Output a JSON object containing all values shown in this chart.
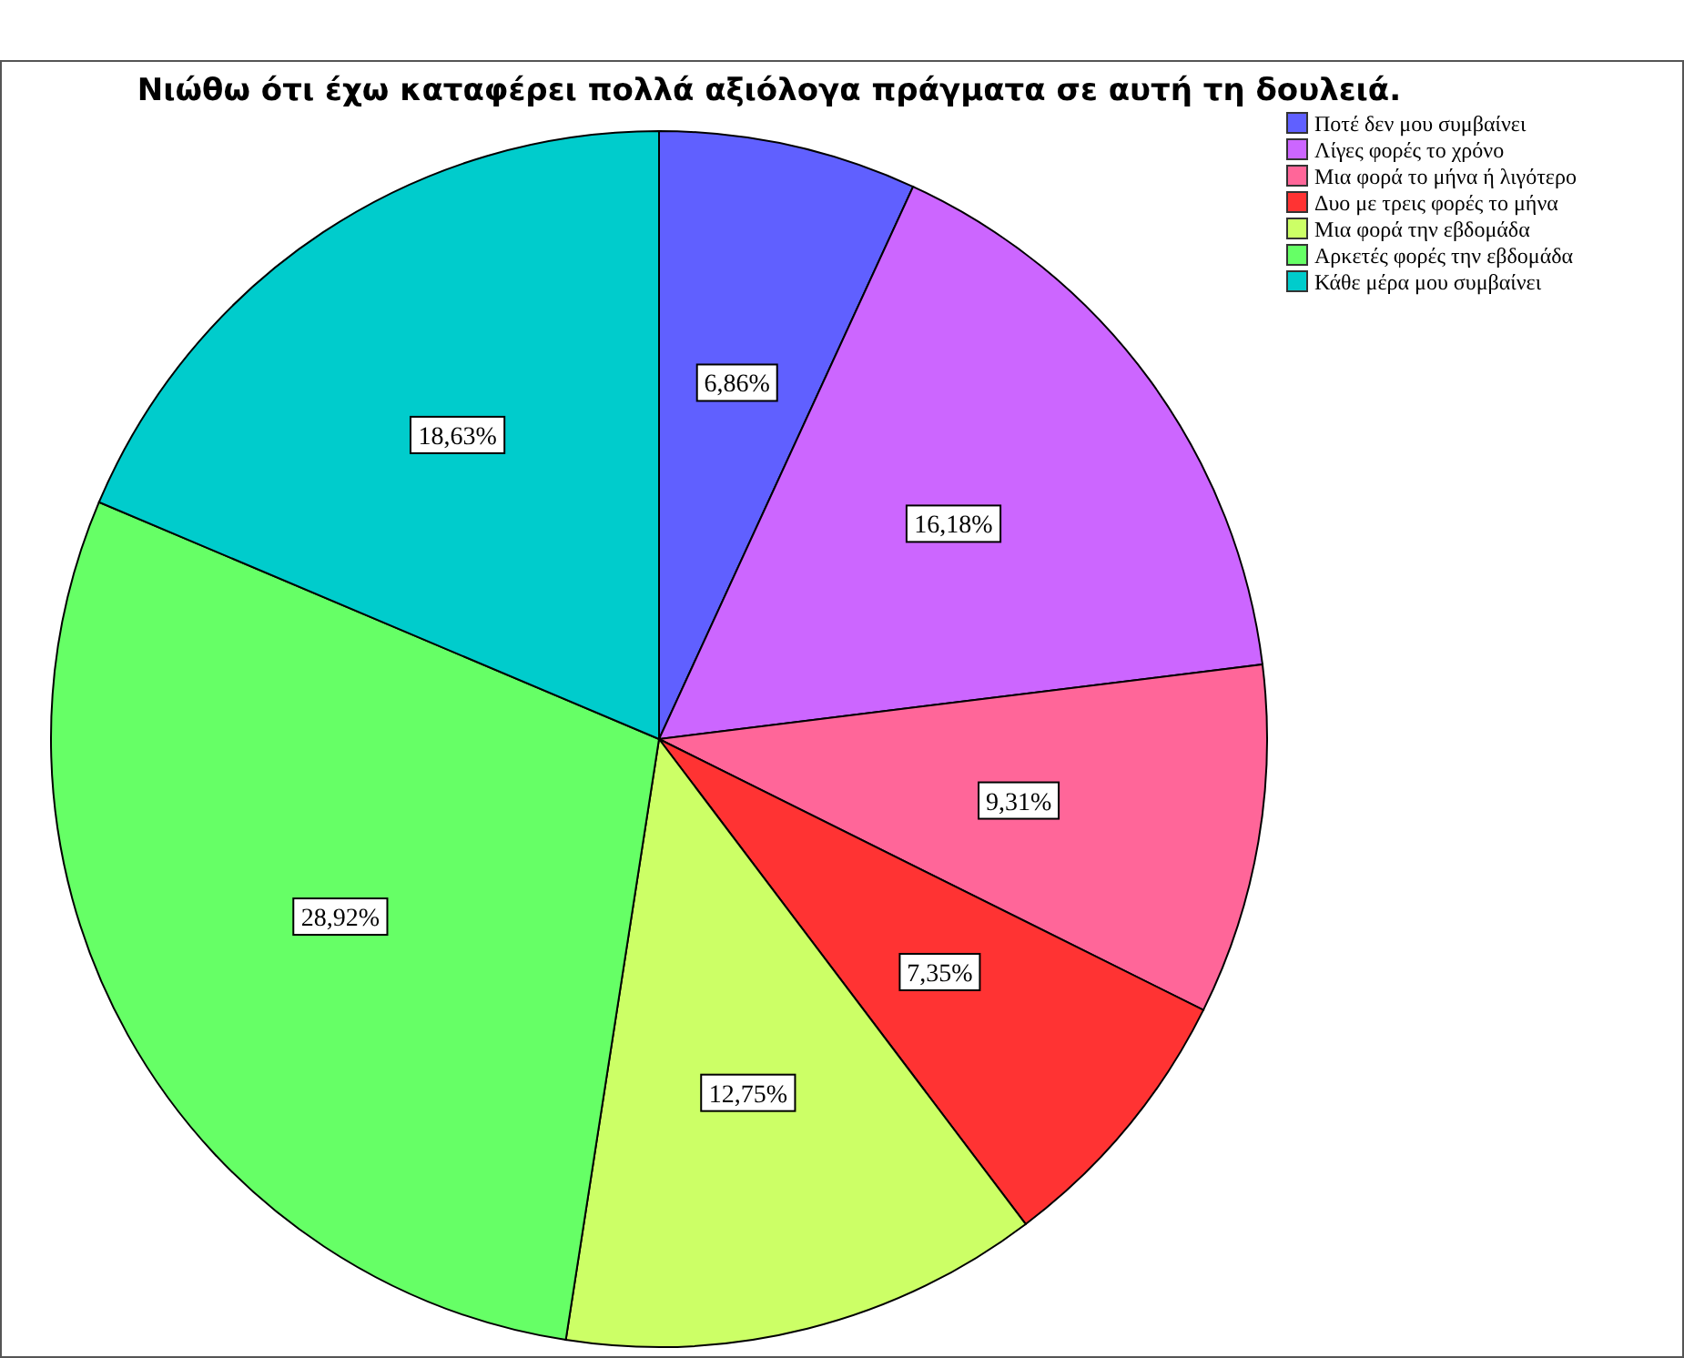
{
  "chart_data": {
    "type": "pie",
    "title": "Νιώθω ότι έχω καταφέρει πολλά αξιόλογα πράγματα σε αυτή τη δουλειά.",
    "categories": [
      "Ποτέ δεν μου συμβαίνει",
      "Λίγες φορές το χρόνο",
      "Μια φορά το μήνα ή λιγότερο",
      "Δυο με τρεις φορές το μήνα",
      "Μια φορά την εβδομάδα",
      "Αρκετές φορές την εβδομάδα",
      "Κάθε μέρα μου συμβαίνει"
    ],
    "values": [
      6.86,
      16.18,
      9.31,
      7.35,
      12.75,
      28.92,
      18.63
    ],
    "value_labels": [
      "6,86%",
      "16,18%",
      "9,31%",
      "7,35%",
      "12,75%",
      "28,92%",
      "18,63%"
    ],
    "colors": [
      "#6060ff",
      "#cc66ff",
      "#ff6699",
      "#ff3333",
      "#ccff66",
      "#66ff66",
      "#00cccc"
    ],
    "legend": "top right"
  }
}
